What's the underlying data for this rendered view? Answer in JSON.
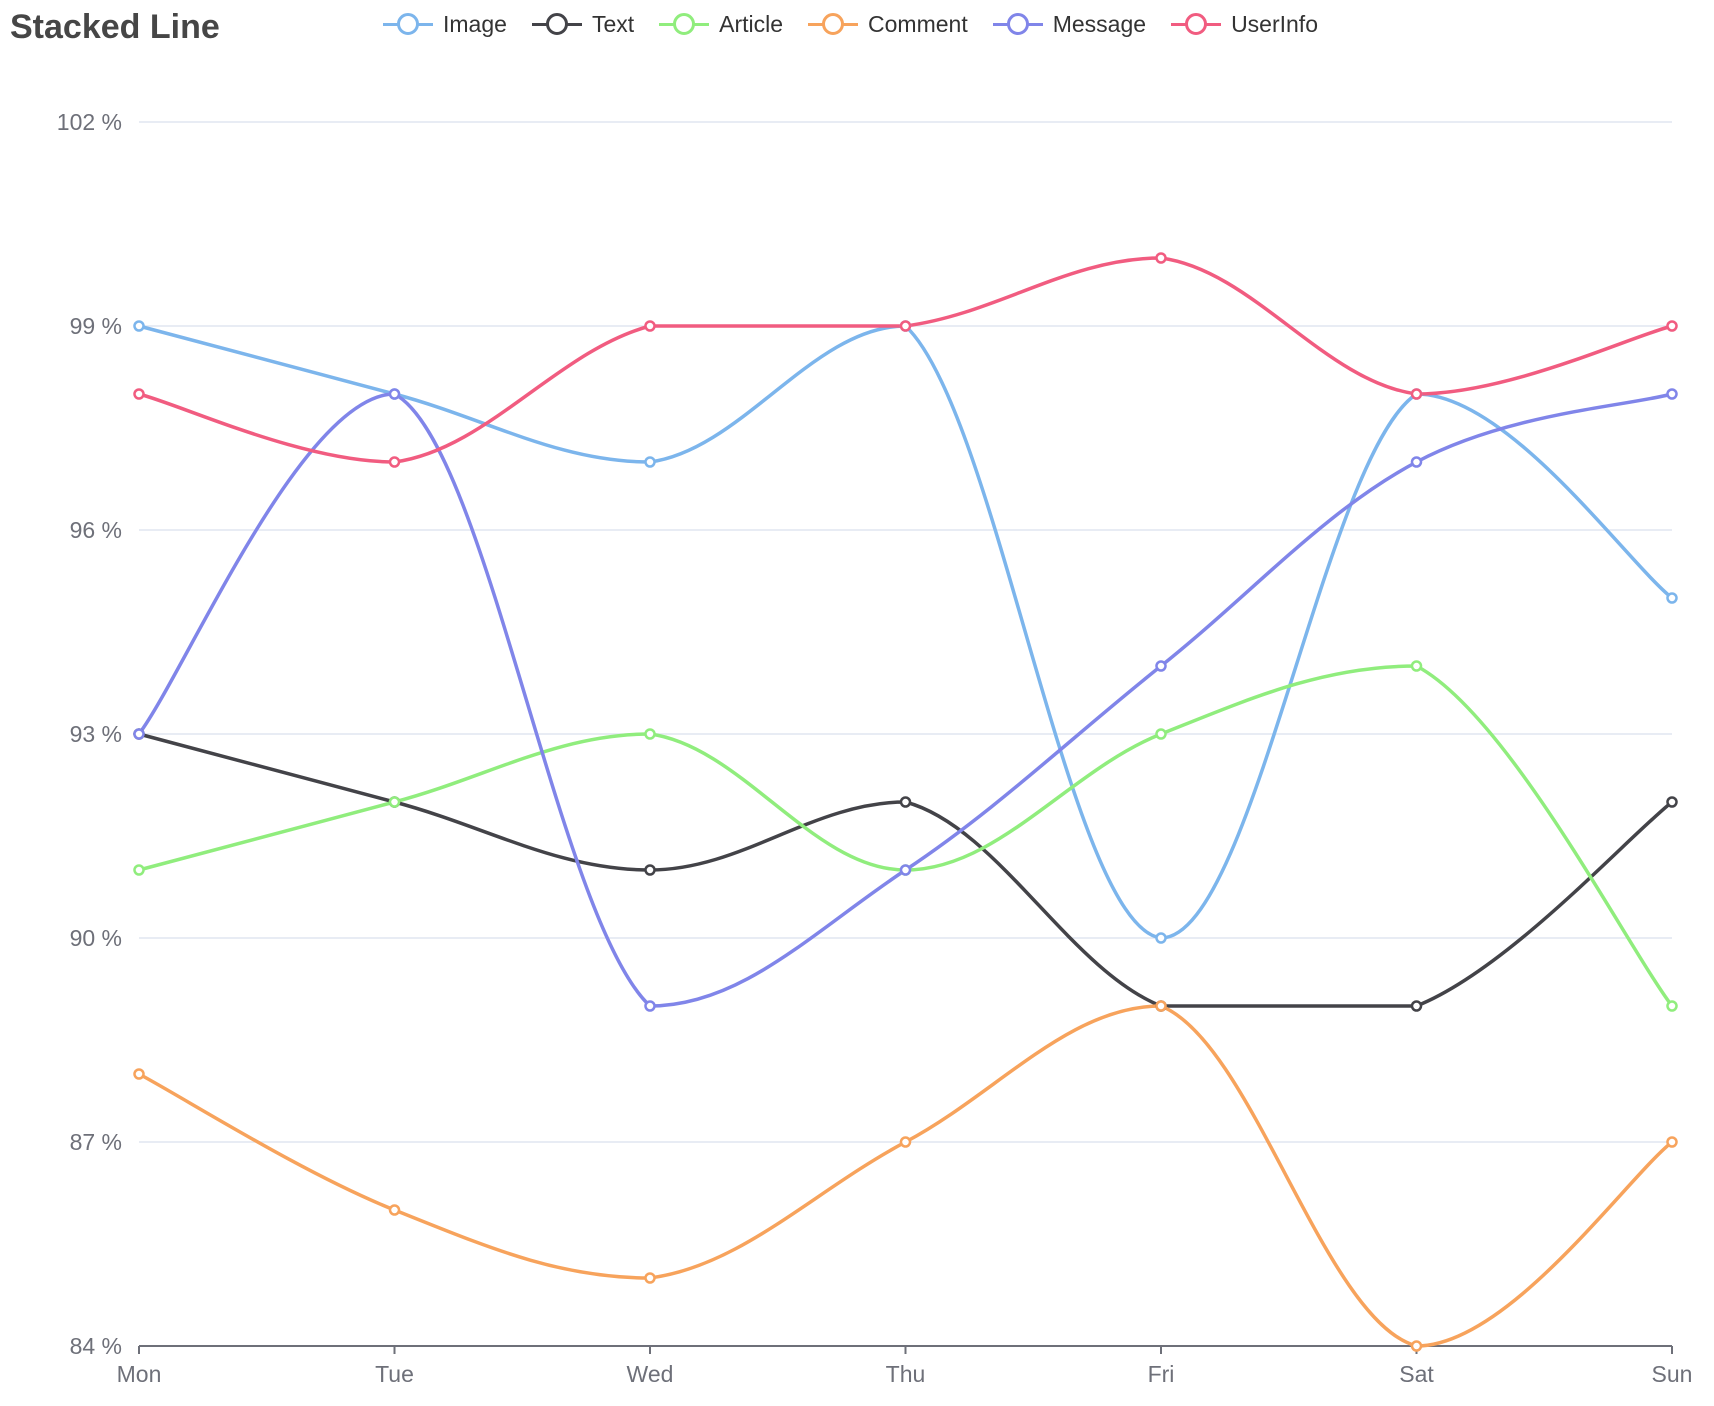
{
  "chart_data": {
    "type": "line",
    "title": "Stacked Line",
    "smooth": true,
    "categories": [
      "Mon",
      "Tue",
      "Wed",
      "Thu",
      "Fri",
      "Sat",
      "Sun"
    ],
    "y_ticks": [
      84,
      87,
      90,
      93,
      96,
      99,
      102
    ],
    "y_tick_labels": [
      "84 %",
      "87 %",
      "90 %",
      "93 %",
      "96 %",
      "99 %",
      "102 %"
    ],
    "ylim": [
      84,
      102
    ],
    "grid": true,
    "legend_position": "top",
    "series": [
      {
        "name": "Image",
        "color": "#7cb5ec",
        "values": [
          99,
          98,
          97,
          99,
          90,
          98,
          95
        ]
      },
      {
        "name": "Text",
        "color": "#434348",
        "values": [
          93,
          92,
          91,
          92,
          89,
          89,
          92
        ]
      },
      {
        "name": "Article",
        "color": "#90ed7d",
        "values": [
          91,
          92,
          93,
          91,
          93,
          94,
          89
        ]
      },
      {
        "name": "Comment",
        "color": "#f7a35c",
        "values": [
          88,
          86,
          85,
          87,
          89,
          84,
          87
        ]
      },
      {
        "name": "Message",
        "color": "#8085e9",
        "values": [
          93,
          98,
          89,
          91,
          94,
          97,
          98
        ]
      },
      {
        "name": "UserInfo",
        "color": "#f15c80",
        "values": [
          98,
          97,
          99,
          99,
          100,
          98,
          99
        ]
      }
    ]
  }
}
